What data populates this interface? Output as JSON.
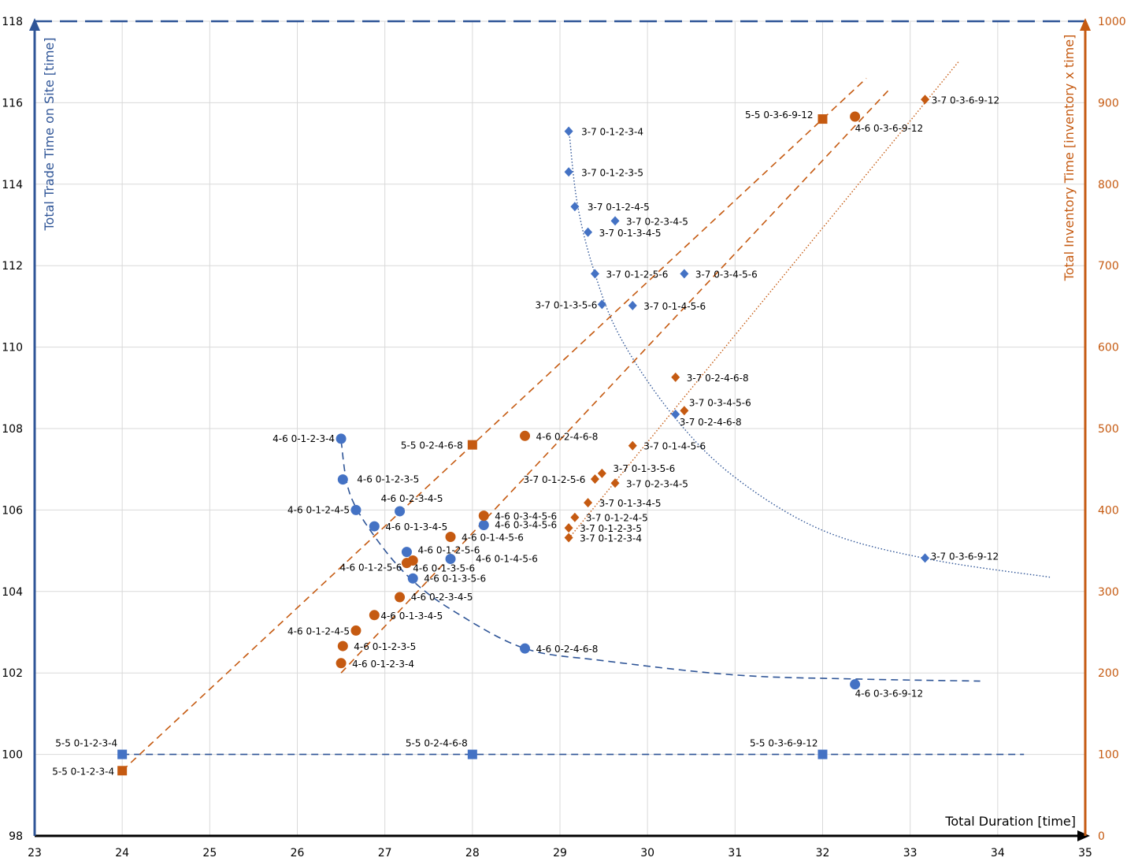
{
  "chart_data": {
    "type": "scatter",
    "title": "",
    "xlabel": "Total Duration [time]",
    "ylabel_left": "Total Trade Time on Site [time]",
    "ylabel_right": "Total Inventory Time [inventory x time]",
    "xlim": [
      23,
      35
    ],
    "ylim_left": [
      98,
      118
    ],
    "ylim_right": [
      0,
      1000
    ],
    "x_ticks": [
      "23",
      "24",
      "25",
      "26",
      "27",
      "28",
      "29",
      "30",
      "31",
      "32",
      "33",
      "34",
      "35"
    ],
    "y_left_ticks": [
      "98",
      "100",
      "102",
      "104",
      "106",
      "108",
      "110",
      "112",
      "114",
      "116",
      "118"
    ],
    "y_right_ticks": [
      "0",
      "100",
      "200",
      "300",
      "400",
      "500",
      "600",
      "700",
      "800",
      "900",
      "1000"
    ],
    "grid": true,
    "legend": "none",
    "colors": {
      "trade": "#4472C4",
      "inventory": "#C55A11",
      "axis_left": "#2F5597",
      "axis_right": "#C55A11"
    },
    "series": [
      {
        "name": "",
        "axis": "left",
        "marker": "square",
        "color": "#4472C4",
        "points": [
          {
            "x": 24.0,
            "y": 100.0,
            "label": "5-5  0-1-2-3-4"
          },
          {
            "x": 28.0,
            "y": 100.0,
            "label": "5-5  0-2-4-6-8"
          },
          {
            "x": 32.0,
            "y": 100.0,
            "label": "5-5  0-3-6-9-12"
          }
        ]
      },
      {
        "name": "",
        "axis": "left",
        "marker": "circle",
        "color": "#4472C4",
        "points": [
          {
            "x": 26.5,
            "y": 107.75,
            "label": "4-6 0-1-2-3-4"
          },
          {
            "x": 26.52,
            "y": 106.75,
            "label": "4-6 0-1-2-3-5"
          },
          {
            "x": 26.67,
            "y": 106.0,
            "label": "4-6 0-1-2-4-5"
          },
          {
            "x": 27.17,
            "y": 105.97,
            "label": "4-6 0-2-3-4-5"
          },
          {
            "x": 26.88,
            "y": 105.6,
            "label": "4-6 0-1-3-4-5"
          },
          {
            "x": 27.25,
            "y": 104.97,
            "label": "4-6 0-1-2-5-6"
          },
          {
            "x": 27.75,
            "y": 104.8,
            "label": "4-6 0-1-4-5-6"
          },
          {
            "x": 28.13,
            "y": 105.63,
            "label": "4-6 0-3-4-5-6"
          },
          {
            "x": 27.32,
            "y": 104.32,
            "label": "4-6 0-1-3-5-6"
          },
          {
            "x": 28.6,
            "y": 102.6,
            "label": "4-6 0-2-4-6-8"
          },
          {
            "x": 32.37,
            "y": 101.72,
            "label": "4-6 0-3-6-9-12"
          }
        ]
      },
      {
        "name": "",
        "axis": "left",
        "marker": "diamond",
        "color": "#4472C4",
        "points": [
          {
            "x": 29.1,
            "y": 115.3,
            "label": "3-7  0-1-2-3-4"
          },
          {
            "x": 29.1,
            "y": 114.3,
            "label": "3-7  0-1-2-3-5"
          },
          {
            "x": 29.17,
            "y": 113.45,
            "label": "3-7  0-1-2-4-5"
          },
          {
            "x": 29.63,
            "y": 113.1,
            "label": "3-7  0-2-3-4-5"
          },
          {
            "x": 29.32,
            "y": 112.82,
            "label": "3-7  0-1-3-4-5"
          },
          {
            "x": 29.4,
            "y": 111.8,
            "label": "3-7  0-1-2-5-6"
          },
          {
            "x": 30.42,
            "y": 111.8,
            "label": "3-7  0-3-4-5-6"
          },
          {
            "x": 29.48,
            "y": 111.05,
            "label": "3-7  0-1-3-5-6"
          },
          {
            "x": 29.83,
            "y": 111.02,
            "label": "3-7  0-1-4-5-6"
          },
          {
            "x": 30.32,
            "y": 108.35,
            "label": "3-7  0-2-4-6-8"
          },
          {
            "x": 33.17,
            "y": 104.82,
            "label": "3-7  0-3-6-9-12"
          }
        ]
      },
      {
        "name": "",
        "axis": "right",
        "marker": "square",
        "color": "#C55A11",
        "points": [
          {
            "x": 24.0,
            "y": 80,
            "label": "5-5  0-1-2-3-4"
          },
          {
            "x": 28.0,
            "y": 480,
            "label": "5-5  0-2-4-6-8"
          },
          {
            "x": 32.0,
            "y": 880,
            "label": "5-5  0-3-6-9-12"
          }
        ]
      },
      {
        "name": "",
        "axis": "right",
        "marker": "circle",
        "color": "#C55A11",
        "points": [
          {
            "x": 26.5,
            "y": 212,
            "label": "4-6 0-1-2-3-4"
          },
          {
            "x": 26.52,
            "y": 233,
            "label": "4-6 0-1-2-3-5"
          },
          {
            "x": 26.67,
            "y": 252,
            "label": "4-6 0-1-2-4-5"
          },
          {
            "x": 26.88,
            "y": 271,
            "label": "4-6 0-1-3-4-5"
          },
          {
            "x": 27.17,
            "y": 293,
            "label": "4-6 0-2-3-4-5"
          },
          {
            "x": 27.25,
            "y": 335,
            "label": "4-6 0-1-2-5-6"
          },
          {
            "x": 27.32,
            "y": 338,
            "label": "4-6 0-1-3-5-6"
          },
          {
            "x": 27.75,
            "y": 367,
            "label": "4-6 0-1-4-5-6"
          },
          {
            "x": 28.13,
            "y": 393,
            "label": "4-6 0-3-4-5-6"
          },
          {
            "x": 28.6,
            "y": 491,
            "label": "4-6 0-2-4-6-8"
          },
          {
            "x": 32.37,
            "y": 883,
            "label": "4-6 0-3-6-9-12"
          }
        ]
      },
      {
        "name": "",
        "axis": "right",
        "marker": "diamond",
        "color": "#C55A11",
        "points": [
          {
            "x": 29.1,
            "y": 366,
            "label": "3-7  0-1-2-3-4"
          },
          {
            "x": 29.1,
            "y": 378,
            "label": "3-7  0-1-2-3-5"
          },
          {
            "x": 29.17,
            "y": 391,
            "label": "3-7  0-1-2-4-5"
          },
          {
            "x": 29.32,
            "y": 409,
            "label": "3-7  0-1-3-4-5"
          },
          {
            "x": 29.4,
            "y": 438,
            "label": "3-7  0-1-2-5-6"
          },
          {
            "x": 29.48,
            "y": 445,
            "label": "3-7  0-1-3-5-6"
          },
          {
            "x": 29.63,
            "y": 433,
            "label": "3-7  0-2-3-4-5"
          },
          {
            "x": 29.83,
            "y": 479,
            "label": "3-7  0-1-4-5-6"
          },
          {
            "x": 30.32,
            "y": 563,
            "label": "3-7  0-2-4-6-8"
          },
          {
            "x": 30.42,
            "y": 522,
            "label": "3-7  0-3-4-5-6"
          },
          {
            "x": 33.17,
            "y": 904,
            "label": "3-7  0-3-6-9-12"
          }
        ]
      }
    ],
    "trendlines": [
      {
        "axis": "left",
        "style": "dashed",
        "color": "#2F5597",
        "points": [
          [
            24.0,
            100.0
          ],
          [
            34.3,
            100.0
          ]
        ]
      },
      {
        "axis": "left",
        "style": "dashed",
        "color": "#2F5597",
        "points": [
          [
            26.5,
            107.7
          ],
          [
            26.6,
            106.4
          ],
          [
            26.9,
            105.3
          ],
          [
            27.3,
            104.3
          ],
          [
            27.8,
            103.5
          ],
          [
            28.6,
            102.6
          ],
          [
            29.5,
            102.3
          ],
          [
            31.0,
            101.95
          ],
          [
            32.4,
            101.85
          ],
          [
            33.8,
            101.8
          ]
        ]
      },
      {
        "axis": "left",
        "style": "dotted",
        "color": "#2F5597",
        "points": [
          [
            29.1,
            115.4
          ],
          [
            29.2,
            113.5
          ],
          [
            29.4,
            111.8
          ],
          [
            29.7,
            110.2
          ],
          [
            30.3,
            108.3
          ],
          [
            31.0,
            106.8
          ],
          [
            32.0,
            105.5
          ],
          [
            33.2,
            104.8
          ],
          [
            34.6,
            104.35
          ]
        ]
      },
      {
        "axis": "right",
        "style": "dashed",
        "color": "#C55A11",
        "points": [
          [
            24.0,
            80
          ],
          [
            32.5,
            930
          ]
        ]
      },
      {
        "axis": "right",
        "style": "dashed",
        "color": "#C55A11",
        "points": [
          [
            26.5,
            200
          ],
          [
            32.75,
            915
          ]
        ]
      },
      {
        "axis": "right",
        "style": "dotted",
        "color": "#C55A11",
        "points": [
          [
            29.1,
            365
          ],
          [
            33.55,
            950
          ]
        ]
      }
    ]
  }
}
